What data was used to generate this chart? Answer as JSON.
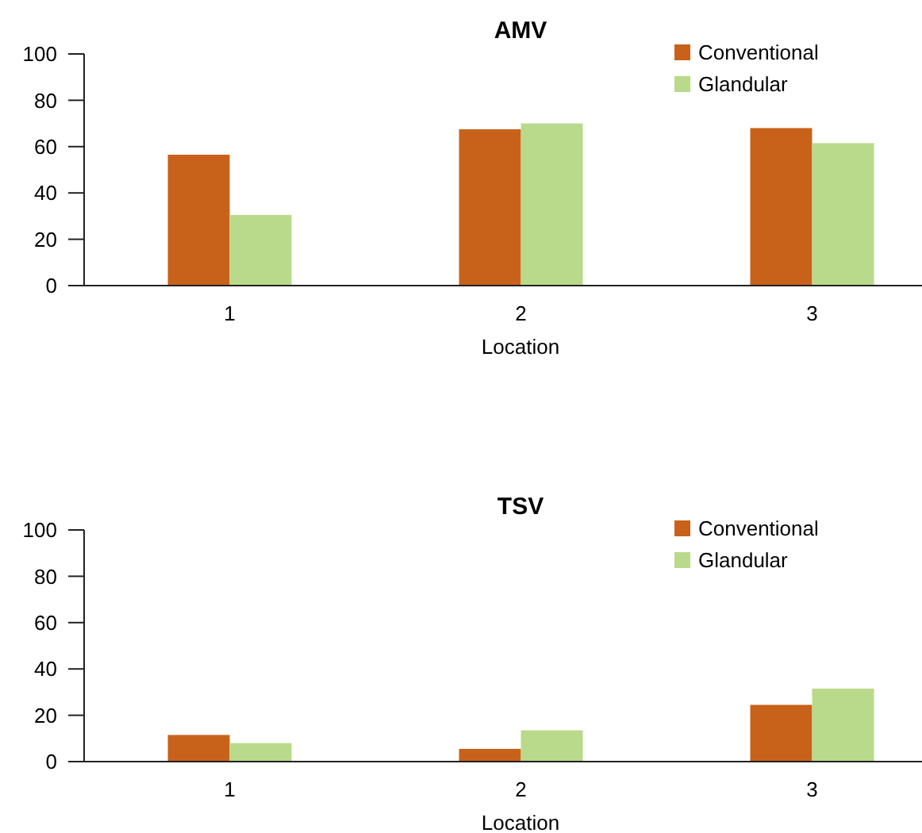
{
  "chart_data": [
    {
      "type": "bar",
      "title": "AMV",
      "xlabel": "Location",
      "categories": [
        "1",
        "2",
        "3"
      ],
      "series": [
        {
          "name": "Conventional",
          "color": "#c8621a",
          "values": [
            56.5,
            67.5,
            68
          ]
        },
        {
          "name": "Glandular",
          "color": "#b8da8a",
          "values": [
            30.5,
            70,
            61.5
          ]
        }
      ],
      "ylim": [
        0,
        100
      ],
      "yticks": [
        0,
        20,
        40,
        60,
        80,
        100
      ],
      "grid": false,
      "legend": "top right"
    },
    {
      "type": "bar",
      "title": "TSV",
      "xlabel": "Location",
      "categories": [
        "1",
        "2",
        "3"
      ],
      "series": [
        {
          "name": "Conventional",
          "color": "#c8621a",
          "values": [
            11.5,
            5.5,
            24.5
          ]
        },
        {
          "name": "Glandular",
          "color": "#b8da8a",
          "values": [
            8,
            13.5,
            31.5
          ]
        }
      ],
      "ylim": [
        0,
        100
      ],
      "yticks": [
        0,
        20,
        40,
        60,
        80,
        100
      ],
      "grid": false,
      "legend": "top right"
    }
  ]
}
